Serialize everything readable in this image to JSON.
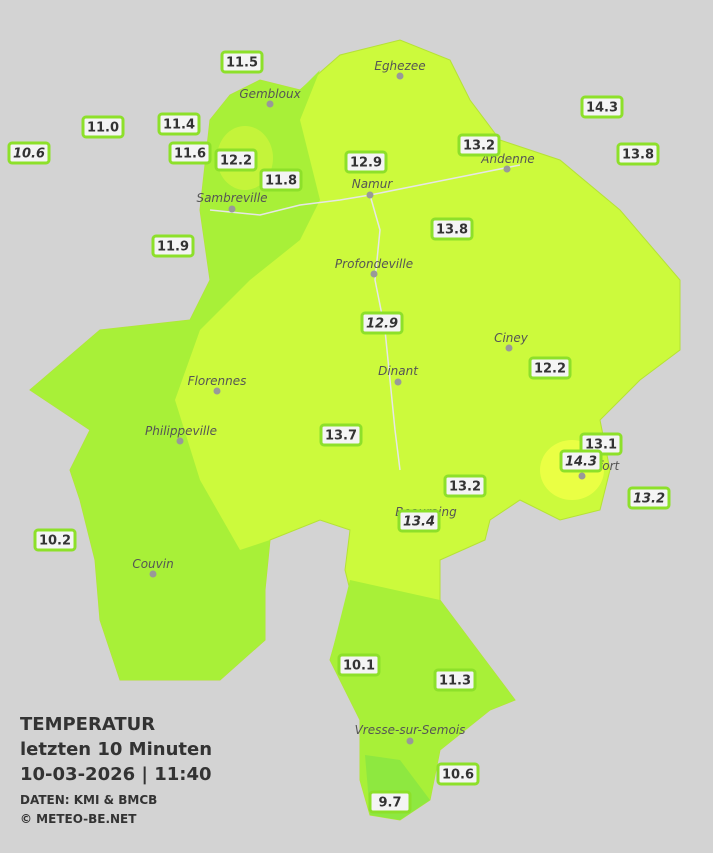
{
  "cities": [
    "Eghezee",
    "Gembloux",
    "Andenne",
    "Namur",
    "Sambreville",
    "Profondeville",
    "Ciney",
    "Dinant",
    "Florennes",
    "Philippeville",
    "Rochefort",
    "Beauraing",
    "Couvin",
    "Vresse-sur-Semois"
  ],
  "stations": [
    {
      "value": "11.5"
    },
    {
      "value": "11.0"
    },
    {
      "value": "11.4"
    },
    {
      "value": "10.6",
      "italic": true
    },
    {
      "value": "11.6"
    },
    {
      "value": "12.2"
    },
    {
      "value": "11.8"
    },
    {
      "value": "12.9"
    },
    {
      "value": "13.2"
    },
    {
      "value": "14.3"
    },
    {
      "value": "13.8"
    },
    {
      "value": "11.9"
    },
    {
      "value": "13.8"
    },
    {
      "value": "12.9",
      "italic": true
    },
    {
      "value": "12.2"
    },
    {
      "value": "13.7"
    },
    {
      "value": "13.1"
    },
    {
      "value": "14.3",
      "italic": true
    },
    {
      "value": "13.2"
    },
    {
      "value": "13.2",
      "italic": true
    },
    {
      "value": "13.4",
      "italic": true
    },
    {
      "value": "10.2"
    },
    {
      "value": "10.1"
    },
    {
      "value": "11.3"
    },
    {
      "value": "10.6"
    },
    {
      "value": "9.7"
    }
  ],
  "legend": {
    "title": "TEMPERATUR",
    "period": "letzten 10 Minuten",
    "datetime": "10-03-2026  |  11:40",
    "source": "DATEN: KMI & BMCB",
    "copyright": "© METEO-BE.NET"
  }
}
